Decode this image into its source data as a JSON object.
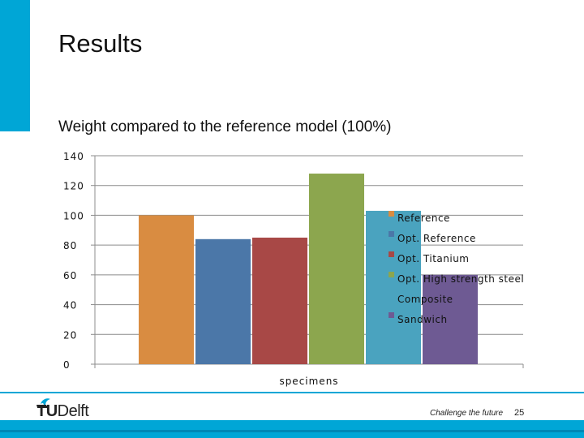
{
  "slide": {
    "title": "Results",
    "page_number": "25",
    "tagline": "Challenge the future",
    "logo": {
      "text_tu": "TU",
      "text_rest": "Delft",
      "icon": "tu-delft-flame-icon"
    }
  },
  "colors": {
    "accent": "#00a6d6",
    "grid": "#8c8c8c"
  },
  "chart_data": {
    "type": "bar",
    "title": "Weight compared to the reference model (100%)",
    "xlabel": "specimens",
    "ylabel": "",
    "ylim": [
      0,
      140
    ],
    "yticks": [
      0,
      20,
      40,
      60,
      80,
      100,
      120,
      140
    ],
    "grid": true,
    "legend_position": "right",
    "series": [
      {
        "name": "Reference",
        "values": [
          100
        ],
        "color": "#d98c41"
      },
      {
        "name": "Opt. Reference",
        "values": [
          84
        ],
        "color": "#4b77a8"
      },
      {
        "name": "Opt. Titanium",
        "values": [
          85
        ],
        "color": "#a84846"
      },
      {
        "name": "Opt. High strength steel",
        "values": [
          128
        ],
        "color": "#8ca64e"
      },
      {
        "name": "Composite",
        "values": [
          103
        ],
        "color": "#4aa3bf"
      },
      {
        "name": "Sandwich",
        "values": [
          60
        ],
        "color": "#6e5a93"
      }
    ]
  }
}
